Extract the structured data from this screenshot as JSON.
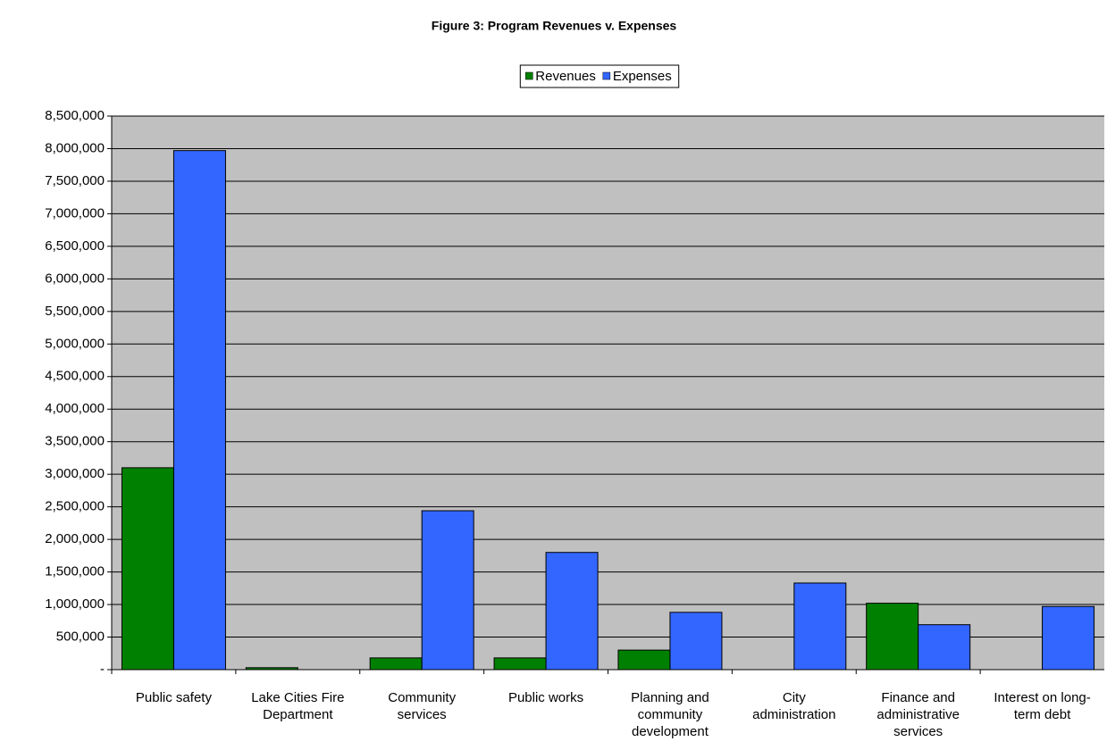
{
  "chart_data": {
    "type": "bar",
    "title": "Figure 3: Program Revenues v. Expenses",
    "categories": [
      "Public safety",
      "Lake Cities Fire Department",
      "Community services",
      "Public works",
      "Planning and community development",
      "City administration",
      "Finance and administrative services",
      "Interest on long-term debt"
    ],
    "series": [
      {
        "name": "Revenues",
        "color": "#008000",
        "values": [
          3100000,
          30000,
          180000,
          180000,
          300000,
          0,
          1020000,
          0
        ]
      },
      {
        "name": "Expenses",
        "color": "#3366ff",
        "values": [
          7970000,
          0,
          2440000,
          1800000,
          880000,
          1330000,
          690000,
          970000
        ]
      }
    ],
    "ylim": [
      0,
      8500000
    ],
    "yticks": [
      {
        "value": 0,
        "label": "-"
      },
      {
        "value": 500000,
        "label": "500,000"
      },
      {
        "value": 1000000,
        "label": "1,000,000"
      },
      {
        "value": 1500000,
        "label": "1,500,000"
      },
      {
        "value": 2000000,
        "label": "2,000,000"
      },
      {
        "value": 2500000,
        "label": "2,500,000"
      },
      {
        "value": 3000000,
        "label": "3,000,000"
      },
      {
        "value": 3500000,
        "label": "3,500,000"
      },
      {
        "value": 4000000,
        "label": "4,000,000"
      },
      {
        "value": 4500000,
        "label": "4,500,000"
      },
      {
        "value": 5000000,
        "label": "5,000,000"
      },
      {
        "value": 5500000,
        "label": "5,500,000"
      },
      {
        "value": 6000000,
        "label": "6,000,000"
      },
      {
        "value": 6500000,
        "label": "6,500,000"
      },
      {
        "value": 7000000,
        "label": "7,000,000"
      },
      {
        "value": 7500000,
        "label": "7,500,000"
      },
      {
        "value": 8000000,
        "label": "8,000,000"
      },
      {
        "value": 8500000,
        "label": "8,500,000"
      }
    ],
    "grid": true,
    "legend": "top"
  }
}
